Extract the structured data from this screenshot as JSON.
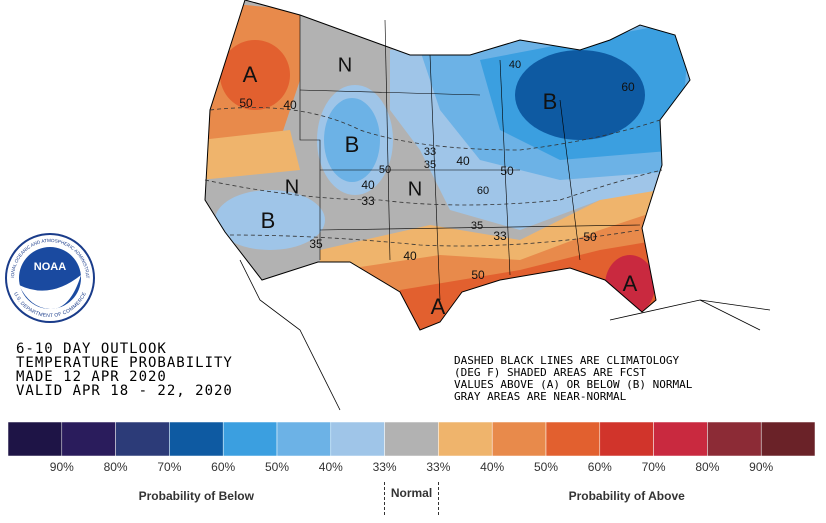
{
  "title_block": [
    "6-10 DAY OUTLOOK",
    "TEMPERATURE PROBABILITY",
    "MADE  12 APR 2020",
    "VALID  APR 18 - 22, 2020"
  ],
  "notes": [
    "DASHED BLACK LINES ARE CLIMATOLOGY",
    "(DEG F) SHADED AREAS ARE FCST",
    "VALUES ABOVE (A) OR BELOW (B) NORMAL",
    "GRAY AREAS ARE NEAR-NORMAL"
  ],
  "logo": {
    "name": "NOAA",
    "ring_top": "NATIONAL OCEANIC AND ATMOSPHERIC ADMINISTRATION",
    "ring_bottom": "U.S. DEPARTMENT OF COMMERCE"
  },
  "map_labels": [
    "A",
    "50",
    "40",
    "N",
    "B",
    "50",
    "33",
    "35",
    "40",
    "50",
    "60",
    "N",
    "N",
    "40",
    "33",
    "B",
    "35",
    "40",
    "35",
    "33",
    "50",
    "50",
    "A",
    "A",
    "B",
    "60",
    "40"
  ],
  "legend": {
    "colors": [
      "#1e1446",
      "#2a1c5c",
      "#2c3b78",
      "#0e5aa2",
      "#3b9fe0",
      "#6cb2e6",
      "#9fc5e8",
      "#b2b2b2",
      "#efb46c",
      "#e88a4b",
      "#e2602f",
      "#d1342b",
      "#c9293f",
      "#8c2b36",
      "#6a2228"
    ],
    "labels": [
      "90%",
      "80%",
      "70%",
      "60%",
      "50%",
      "40%",
      "33%",
      "33%",
      "40%",
      "50%",
      "60%",
      "70%",
      "80%",
      "90%"
    ],
    "below": "Probability of Below",
    "normal": "Normal",
    "above": "Probability of Above"
  }
}
